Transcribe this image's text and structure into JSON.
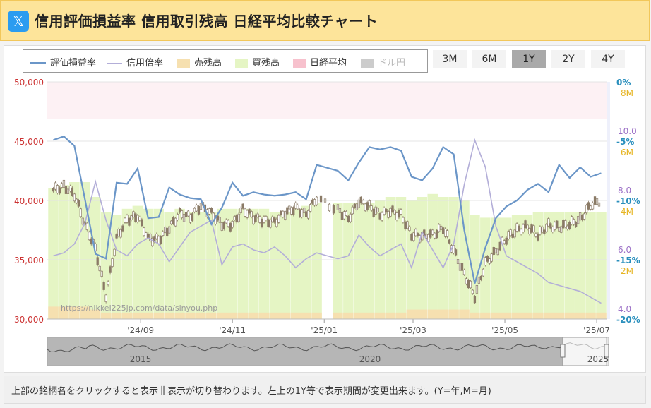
{
  "header": {
    "x_icon": "x-logo-icon",
    "title": "信用評価損益率 信用取引残高 日経平均比較チャート"
  },
  "legend": [
    {
      "label": "評価損益率",
      "color": "#6b96c8"
    },
    {
      "label": "信用倍率",
      "color": "#b3aed8"
    },
    {
      "label": "売残高",
      "color": "#f6e0b0"
    },
    {
      "label": "買残高",
      "color": "#e5f5c4"
    },
    {
      "label": "日経平均",
      "color": "#f7c1cd"
    },
    {
      "label": "ドル円",
      "color": "#cccccc"
    }
  ],
  "range_buttons": [
    {
      "label": "3M",
      "active": false
    },
    {
      "label": "6M",
      "active": false
    },
    {
      "label": "1Y",
      "active": true
    },
    {
      "label": "2Y",
      "active": false
    },
    {
      "label": "4Y",
      "active": false
    }
  ],
  "watermark": "https://nikkei225jp.com/data/sinyou.php",
  "navigator_labels": [
    "2015",
    "2020",
    "2025"
  ],
  "footer": {
    "text": "上部の銘柄名をクリックすると表示非表示が切り替わります。左上の1Y等で表示期間が変更出来ます。(Y=年,M=月)"
  },
  "chart_data": {
    "type": "line",
    "x_ticks": [
      "'24/09",
      "'24/11",
      "'25/01",
      "'25/03",
      "'25/05",
      "'25/07"
    ],
    "axes": {
      "nikkei": {
        "ticks": [
          "50,000",
          "45,000",
          "40,000",
          "35,000",
          "30,000"
        ],
        "min": 30000,
        "max": 50000,
        "color": "#cc3333"
      },
      "pl_rate": {
        "ticks": [
          "0%",
          "-5%",
          "-10%",
          "-15%",
          "-20%"
        ],
        "min": -20,
        "max": 0,
        "color": "#2a8fbd"
      },
      "margin_ratio": {
        "ticks": [
          "10.0",
          "8.0",
          "6.0",
          "4.0"
        ],
        "color": "#9b6fc6"
      },
      "balance": {
        "ticks": [
          "8M",
          "6M",
          "4M",
          "2M"
        ],
        "color": "#e6b422"
      }
    },
    "series": [
      {
        "name": "評価損益率",
        "color": "#6b96c8",
        "x": [
          "2024-07-05",
          "2024-07-12",
          "2024-07-19",
          "2024-07-26",
          "2024-08-02",
          "2024-08-09",
          "2024-08-16",
          "2024-08-23",
          "2024-08-30",
          "2024-09-06",
          "2024-09-13",
          "2024-09-20",
          "2024-09-27",
          "2024-10-04",
          "2024-10-11",
          "2024-10-18",
          "2024-10-25",
          "2024-11-01",
          "2024-11-08",
          "2024-11-15",
          "2024-11-22",
          "2024-11-29",
          "2024-12-06",
          "2024-12-13",
          "2024-12-20",
          "2024-12-27",
          "2025-01-10",
          "2025-01-17",
          "2025-01-24",
          "2025-01-31",
          "2025-02-07",
          "2025-02-14",
          "2025-02-21",
          "2025-02-28",
          "2025-03-07",
          "2025-03-14",
          "2025-03-21",
          "2025-03-28",
          "2025-04-04",
          "2025-04-11",
          "2025-04-18",
          "2025-04-25",
          "2025-05-02",
          "2025-05-09",
          "2025-05-16",
          "2025-05-23",
          "2025-05-30",
          "2025-06-06",
          "2025-06-13",
          "2025-06-20",
          "2025-06-27",
          "2025-07-04"
        ],
        "values": [
          -4.9,
          -4.6,
          -5.4,
          -9.9,
          -14.5,
          -14.9,
          -8.5,
          -8.6,
          -7.3,
          -11.5,
          -11.4,
          -8.9,
          -9.5,
          -9.8,
          -9.9,
          -12.0,
          -10.6,
          -8.5,
          -9.6,
          -9.3,
          -9.5,
          -9.6,
          -9.5,
          -9.3,
          -9.9,
          -7.0,
          -7.5,
          -8.3,
          -6.8,
          -5.5,
          -5.7,
          -5.5,
          -5.8,
          -8.0,
          -8.3,
          -7.3,
          -5.5,
          -6.1,
          -12.5,
          -17.0,
          -14.0,
          -11.5,
          -10.5,
          -10.0,
          -9.1,
          -8.6,
          -9.3,
          -7.0,
          -8.1,
          -7.2,
          -8.0,
          -7.7
        ]
      },
      {
        "name": "信用倍率",
        "color": "#b3aed8",
        "x": [
          "2024-07-05",
          "2024-07-12",
          "2024-07-19",
          "2024-07-26",
          "2024-08-02",
          "2024-08-09",
          "2024-08-16",
          "2024-08-23",
          "2024-08-30",
          "2024-09-06",
          "2024-09-13",
          "2024-09-20",
          "2024-09-27",
          "2024-10-04",
          "2024-10-11",
          "2024-10-18",
          "2024-10-25",
          "2024-11-01",
          "2024-11-08",
          "2024-11-15",
          "2024-11-22",
          "2024-11-29",
          "2024-12-06",
          "2024-12-13",
          "2024-12-20",
          "2024-12-27",
          "2025-01-10",
          "2025-01-17",
          "2025-01-24",
          "2025-01-31",
          "2025-02-07",
          "2025-02-14",
          "2025-02-21",
          "2025-02-28",
          "2025-03-07",
          "2025-03-14",
          "2025-03-21",
          "2025-03-28",
          "2025-04-04",
          "2025-04-11",
          "2025-04-18",
          "2025-04-25",
          "2025-05-02",
          "2025-05-09",
          "2025-05-16",
          "2025-05-23",
          "2025-05-30",
          "2025-06-06",
          "2025-06-13",
          "2025-06-20",
          "2025-06-27",
          "2025-07-04"
        ],
        "values": [
          5.8,
          5.9,
          6.2,
          6.9,
          8.3,
          7.0,
          6.0,
          5.8,
          6.2,
          6.4,
          6.2,
          5.6,
          6.1,
          6.6,
          6.8,
          7.0,
          5.5,
          6.1,
          6.2,
          6.0,
          5.9,
          6.1,
          5.8,
          5.4,
          5.7,
          5.9,
          5.7,
          5.8,
          6.5,
          6.1,
          5.8,
          6.0,
          6.2,
          5.4,
          6.6,
          6.0,
          5.4,
          6.2,
          8.2,
          9.7,
          8.8,
          6.8,
          5.8,
          5.6,
          5.4,
          5.2,
          4.9,
          4.8,
          4.7,
          4.6,
          4.4,
          4.2
        ]
      },
      {
        "name": "日経平均",
        "color": "#8a7a66",
        "x": [
          "2024-07-05",
          "2024-07-12",
          "2024-07-19",
          "2024-07-26",
          "2024-08-02",
          "2024-08-09",
          "2024-08-16",
          "2024-08-23",
          "2024-08-30",
          "2024-09-06",
          "2024-09-13",
          "2024-09-20",
          "2024-09-27",
          "2024-10-04",
          "2024-10-11",
          "2024-10-18",
          "2024-10-25",
          "2024-11-01",
          "2024-11-08",
          "2024-11-15",
          "2024-11-22",
          "2024-11-29",
          "2024-12-06",
          "2024-12-13",
          "2024-12-20",
          "2024-12-27",
          "2025-01-10",
          "2025-01-17",
          "2025-01-24",
          "2025-01-31",
          "2025-02-07",
          "2025-02-14",
          "2025-02-21",
          "2025-02-28",
          "2025-03-07",
          "2025-03-14",
          "2025-03-21",
          "2025-03-28",
          "2025-04-04",
          "2025-04-11",
          "2025-04-18",
          "2025-04-25",
          "2025-05-02",
          "2025-05-09",
          "2025-05-16",
          "2025-05-23",
          "2025-05-30",
          "2025-06-06",
          "2025-06-13",
          "2025-06-20",
          "2025-06-27",
          "2025-07-04"
        ],
        "values": [
          40900,
          41200,
          40500,
          38000,
          35900,
          32000,
          36800,
          38400,
          38700,
          36800,
          36700,
          37700,
          38900,
          38600,
          39600,
          38900,
          38000,
          38000,
          39300,
          38600,
          38300,
          38200,
          39000,
          39400,
          38800,
          40200,
          39200,
          38500,
          39900,
          39500,
          38800,
          39100,
          38800,
          37100,
          37000,
          37100,
          37700,
          35800,
          33800,
          31900,
          34700,
          35700,
          36800,
          37500,
          37800,
          37100,
          37900,
          37700,
          38000,
          38400,
          39600,
          40000
        ]
      },
      {
        "name": "買残高",
        "color": "#e5f5c4",
        "x": [
          "2024-07-05",
          "2024-07-12",
          "2024-07-19",
          "2024-07-26",
          "2024-08-02",
          "2024-08-09",
          "2024-08-16",
          "2024-08-23",
          "2024-08-30",
          "2024-09-06",
          "2024-09-13",
          "2024-09-20",
          "2024-09-27",
          "2024-10-04",
          "2024-10-11",
          "2024-10-18",
          "2024-10-25",
          "2024-11-01",
          "2024-11-08",
          "2024-11-15",
          "2024-11-22",
          "2024-11-29",
          "2024-12-06",
          "2024-12-13",
          "2024-12-20",
          "2024-12-27",
          "2025-01-10",
          "2025-01-17",
          "2025-01-24",
          "2025-01-31",
          "2025-02-07",
          "2025-02-14",
          "2025-02-21",
          "2025-02-28",
          "2025-03-07",
          "2025-03-14",
          "2025-03-21",
          "2025-03-28",
          "2025-04-04",
          "2025-04-11",
          "2025-04-18",
          "2025-04-25",
          "2025-05-02",
          "2025-05-09",
          "2025-05-16",
          "2025-05-23",
          "2025-05-30",
          "2025-06-06",
          "2025-06-13",
          "2025-06-20",
          "2025-06-27",
          "2025-07-04"
        ],
        "values": [
          4.8,
          4.9,
          5.0,
          5.0,
          4.5,
          4.0,
          3.9,
          4.1,
          4.2,
          4.1,
          4.1,
          4.0,
          4.1,
          4.0,
          4.0,
          4.0,
          4.1,
          4.1,
          4.1,
          4.1,
          4.1,
          4.0,
          4.0,
          4.1,
          4.2,
          4.3,
          4.3,
          4.3,
          4.3,
          4.3,
          4.4,
          4.5,
          4.5,
          4.4,
          4.5,
          4.6,
          4.5,
          4.5,
          4.4,
          3.9,
          3.8,
          3.8,
          3.8,
          3.9,
          3.9,
          4.0,
          4.0,
          4.0,
          4.0,
          4.0,
          4.0,
          4.0
        ]
      },
      {
        "name": "売残高",
        "color": "#f6e0b0",
        "x": [
          "2024-07-05",
          "2024-07-12",
          "2024-07-19",
          "2024-07-26",
          "2024-08-02",
          "2024-08-09",
          "2024-08-16",
          "2024-08-23",
          "2024-08-30",
          "2024-09-06",
          "2024-09-13",
          "2024-09-20",
          "2024-09-27",
          "2024-10-04",
          "2024-10-11",
          "2024-10-18",
          "2024-10-25",
          "2024-11-01",
          "2024-11-08",
          "2024-11-15",
          "2024-11-22",
          "2024-11-29",
          "2024-12-06",
          "2024-12-13",
          "2024-12-20",
          "2024-12-27",
          "2025-01-10",
          "2025-01-17",
          "2025-01-24",
          "2025-01-31",
          "2025-02-07",
          "2025-02-14",
          "2025-02-21",
          "2025-02-28",
          "2025-03-07",
          "2025-03-14",
          "2025-03-21",
          "2025-03-28",
          "2025-04-04",
          "2025-04-11",
          "2025-04-18",
          "2025-04-25",
          "2025-05-02",
          "2025-05-09",
          "2025-05-16",
          "2025-05-23",
          "2025-05-30",
          "2025-06-06",
          "2025-06-13",
          "2025-06-20",
          "2025-06-27",
          "2025-07-04"
        ],
        "values": [
          0.8,
          0.8,
          0.8,
          0.8,
          0.7,
          0.6,
          0.6,
          0.6,
          0.6,
          0.6,
          0.6,
          0.6,
          0.6,
          0.6,
          0.6,
          0.6,
          0.6,
          0.6,
          0.6,
          0.6,
          0.6,
          0.6,
          0.6,
          0.6,
          0.6,
          0.6,
          0.6,
          0.6,
          0.6,
          0.6,
          0.6,
          0.6,
          0.6,
          0.7,
          0.7,
          0.7,
          0.7,
          0.7,
          0.7,
          0.6,
          0.6,
          0.6,
          0.6,
          0.6,
          0.6,
          0.6,
          0.6,
          0.6,
          0.6,
          0.6,
          0.6,
          0.6
        ]
      }
    ]
  }
}
